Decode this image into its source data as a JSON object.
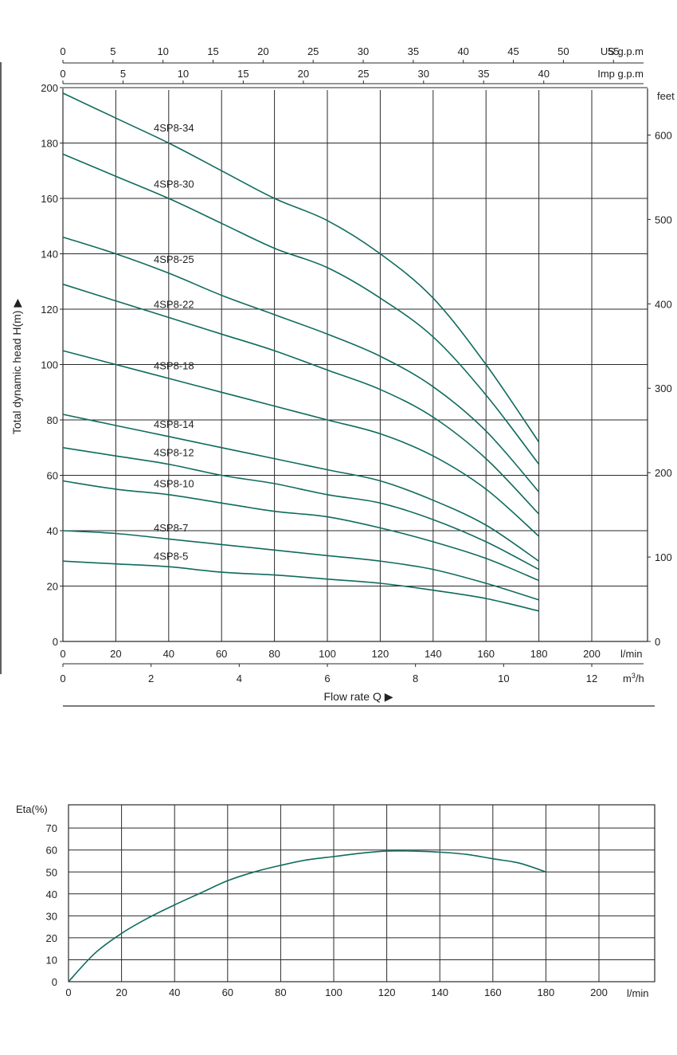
{
  "colors": {
    "curve": "#0f6b5e",
    "grid": "#2a2a2a",
    "text": "#222222",
    "background": "#ffffff"
  },
  "chart_data": [
    {
      "type": "line",
      "title": "",
      "ylabel": "Total dynamic head H(m)",
      "ylabel_marker": "▶",
      "xlabel": "Flow rate Q",
      "xlabel_marker": "▶",
      "ylim": [
        0,
        200
      ],
      "xlim": [
        0,
        220
      ],
      "grid": true,
      "y_ticks": [
        0,
        20,
        40,
        60,
        80,
        100,
        120,
        140,
        160,
        180,
        200
      ],
      "x_ticks": [
        0,
        20,
        40,
        60,
        80,
        100,
        120,
        140,
        160,
        180,
        200
      ],
      "x_unit": "l/min",
      "secondary_axes": {
        "us_gpm": {
          "label": "US g.p.m",
          "ticks": [
            0,
            5,
            10,
            15,
            20,
            25,
            30,
            35,
            40,
            45,
            50,
            55
          ]
        },
        "imp_gpm": {
          "label": "Imp g.p.m",
          "ticks": [
            0,
            5,
            10,
            15,
            20,
            25,
            30,
            35,
            40
          ]
        },
        "feet": {
          "label": "feet",
          "ticks": [
            0,
            100,
            200,
            300,
            400,
            500,
            600
          ]
        },
        "m3h": {
          "label_main": "m",
          "label_sup": "3",
          "label_tail": "/h",
          "ticks": [
            0,
            2,
            4,
            6,
            8,
            10,
            12
          ]
        }
      },
      "series": [
        {
          "name": "4SP8-34",
          "x": [
            0,
            20,
            40,
            60,
            80,
            100,
            120,
            140,
            160,
            180
          ],
          "values": [
            198,
            189,
            180,
            170,
            160,
            152,
            140,
            124,
            100,
            72
          ]
        },
        {
          "name": "4SP8-30",
          "x": [
            0,
            20,
            40,
            60,
            80,
            100,
            120,
            140,
            160,
            180
          ],
          "values": [
            176,
            168,
            160,
            151,
            142,
            135,
            124,
            110,
            89,
            64
          ]
        },
        {
          "name": "4SP8-25",
          "x": [
            0,
            20,
            40,
            60,
            80,
            100,
            120,
            140,
            160,
            180
          ],
          "values": [
            146,
            140,
            133,
            125,
            118,
            111,
            103,
            92,
            76,
            54
          ]
        },
        {
          "name": "4SP8-22",
          "x": [
            0,
            20,
            40,
            60,
            80,
            100,
            120,
            140,
            160,
            180
          ],
          "values": [
            129,
            123,
            117,
            111,
            105,
            98,
            91,
            81,
            66,
            46
          ]
        },
        {
          "name": "4SP8-18",
          "x": [
            0,
            20,
            40,
            60,
            80,
            100,
            120,
            140,
            160,
            180
          ],
          "values": [
            105,
            100,
            95,
            90,
            85,
            80,
            75,
            67,
            55,
            38
          ]
        },
        {
          "name": "4SP8-14",
          "x": [
            0,
            20,
            40,
            60,
            80,
            100,
            120,
            140,
            160,
            180
          ],
          "values": [
            82,
            78,
            74,
            70,
            66,
            62,
            58,
            51,
            42,
            29
          ]
        },
        {
          "name": "4SP8-12",
          "x": [
            0,
            20,
            40,
            60,
            80,
            100,
            120,
            140,
            160,
            180
          ],
          "values": [
            70,
            67,
            64,
            60,
            57,
            53,
            50,
            44,
            36,
            26
          ]
        },
        {
          "name": "4SP8-10",
          "x": [
            0,
            20,
            40,
            60,
            80,
            100,
            120,
            140,
            160,
            180
          ],
          "values": [
            58,
            55,
            53,
            50,
            47,
            45,
            41,
            36,
            30,
            22
          ]
        },
        {
          "name": "4SP8-7",
          "x": [
            0,
            20,
            40,
            60,
            80,
            100,
            120,
            140,
            160,
            180
          ],
          "values": [
            40,
            39,
            37,
            35,
            33,
            31,
            29,
            26,
            21,
            15
          ]
        },
        {
          "name": "4SP8-5",
          "x": [
            0,
            20,
            40,
            60,
            80,
            100,
            120,
            140,
            160,
            180
          ],
          "values": [
            29,
            28,
            27,
            25,
            24,
            22.5,
            21,
            18.5,
            15.5,
            11
          ]
        }
      ]
    },
    {
      "type": "line",
      "title": "",
      "ylabel": "Eta(%)",
      "xlabel": "",
      "x_unit": "l/min",
      "ylim": [
        0,
        80
      ],
      "xlim": [
        0,
        220
      ],
      "grid": true,
      "y_ticks": [
        0,
        10,
        20,
        30,
        40,
        50,
        60,
        70
      ],
      "x_ticks": [
        0,
        20,
        40,
        60,
        80,
        100,
        120,
        140,
        160,
        180,
        200
      ],
      "series": [
        {
          "x": [
            0,
            10,
            20,
            30,
            40,
            50,
            60,
            70,
            80,
            90,
            100,
            110,
            120,
            130,
            140,
            150,
            160,
            170,
            180
          ],
          "values": [
            0,
            13,
            22,
            29,
            35,
            40.5,
            46,
            50,
            53,
            55.5,
            57,
            58.5,
            59.5,
            59.5,
            59,
            58,
            56,
            54,
            50
          ]
        }
      ]
    }
  ]
}
